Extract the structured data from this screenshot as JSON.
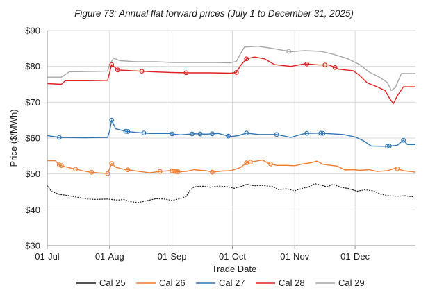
{
  "chart_data": {
    "type": "line",
    "title": "Figure 73: Annual flat forward prices (July 1 to December 31, 2025)",
    "xlabel": "Trade Date",
    "ylabel": "Price ($/MWh)",
    "ylim": [
      30,
      90
    ],
    "y_ticks": [
      30,
      40,
      50,
      60,
      70,
      80,
      90
    ],
    "y_tick_labels": [
      "$30",
      "$40",
      "$50",
      "$60",
      "$70",
      "$80",
      "$90"
    ],
    "x_range": [
      "2025-07-01",
      "2025-12-31"
    ],
    "x_ticks": [
      "2025-07-01",
      "2025-08-01",
      "2025-09-01",
      "2025-10-01",
      "2025-11-01",
      "2025-12-01"
    ],
    "x_tick_labels": [
      "01-Jul",
      "01-Aug",
      "01-Sep",
      "01-Oct",
      "01-Nov",
      "01-Dec"
    ],
    "grid": "horizontal and vertical",
    "legend_position": "bottom",
    "series": [
      {
        "name": "Cal 25",
        "color": "#1a1a1a",
        "style": "dotted",
        "points": [
          [
            "2025-07-01",
            46.8
          ],
          [
            "2025-07-03",
            45.2
          ],
          [
            "2025-07-07",
            44.3
          ],
          [
            "2025-07-11",
            44.0
          ],
          [
            "2025-07-16",
            43.5
          ],
          [
            "2025-07-21",
            43.0
          ],
          [
            "2025-07-25",
            42.9
          ],
          [
            "2025-07-31",
            43.0
          ],
          [
            "2025-08-05",
            42.7
          ],
          [
            "2025-08-08",
            42.9
          ],
          [
            "2025-08-11",
            42.3
          ],
          [
            "2025-08-15",
            42.0
          ],
          [
            "2025-08-20",
            42.6
          ],
          [
            "2025-08-24",
            43.1
          ],
          [
            "2025-08-28",
            43.0
          ],
          [
            "2025-09-01",
            42.6
          ],
          [
            "2025-09-05",
            43.1
          ],
          [
            "2025-09-08",
            43.7
          ],
          [
            "2025-09-10",
            45.5
          ],
          [
            "2025-09-12",
            46.4
          ],
          [
            "2025-09-16",
            46.6
          ],
          [
            "2025-09-20",
            46.3
          ],
          [
            "2025-09-24",
            46.6
          ],
          [
            "2025-09-28",
            46.5
          ],
          [
            "2025-10-02",
            46.0
          ],
          [
            "2025-10-06",
            46.6
          ],
          [
            "2025-10-08",
            47.1
          ],
          [
            "2025-10-12",
            46.7
          ],
          [
            "2025-10-16",
            46.8
          ],
          [
            "2025-10-21",
            46.5
          ],
          [
            "2025-10-24",
            45.6
          ],
          [
            "2025-10-28",
            45.9
          ],
          [
            "2025-11-01",
            45.3
          ],
          [
            "2025-11-04",
            45.9
          ],
          [
            "2025-11-08",
            46.4
          ],
          [
            "2025-11-11",
            47.3
          ],
          [
            "2025-11-14",
            46.9
          ],
          [
            "2025-11-17",
            46.4
          ],
          [
            "2025-11-20",
            47.1
          ],
          [
            "2025-11-24",
            46.3
          ],
          [
            "2025-11-28",
            45.9
          ],
          [
            "2025-12-02",
            45.2
          ],
          [
            "2025-12-06",
            45.6
          ],
          [
            "2025-12-10",
            45.3
          ],
          [
            "2025-12-14",
            44.3
          ],
          [
            "2025-12-18",
            43.9
          ],
          [
            "2025-12-22",
            43.8
          ],
          [
            "2025-12-26",
            43.9
          ],
          [
            "2025-12-30",
            43.6
          ]
        ]
      },
      {
        "name": "Cal 26",
        "color": "#ed7d31",
        "style": "solid",
        "points": [
          [
            "2025-07-01",
            53.7
          ],
          [
            "2025-07-05",
            53.7
          ],
          [
            "2025-07-07",
            52.5
          ],
          [
            "2025-07-10",
            52.0
          ],
          [
            "2025-07-13",
            51.6
          ],
          [
            "2025-07-17",
            51.1
          ],
          [
            "2025-07-21",
            50.6
          ],
          [
            "2025-07-26",
            50.3
          ],
          [
            "2025-07-31",
            50.1
          ],
          [
            "2025-08-02",
            52.9
          ],
          [
            "2025-08-04",
            51.9
          ],
          [
            "2025-08-08",
            51.3
          ],
          [
            "2025-08-12",
            51.0
          ],
          [
            "2025-08-17",
            50.6
          ],
          [
            "2025-08-21",
            50.3
          ],
          [
            "2025-08-26",
            50.7
          ],
          [
            "2025-08-31",
            50.9
          ],
          [
            "2025-09-04",
            50.6
          ],
          [
            "2025-09-08",
            50.7
          ],
          [
            "2025-09-12",
            51.2
          ],
          [
            "2025-09-15",
            51.0
          ],
          [
            "2025-09-18",
            50.9
          ],
          [
            "2025-09-21",
            50.5
          ],
          [
            "2025-09-26",
            50.8
          ],
          [
            "2025-09-30",
            50.9
          ],
          [
            "2025-10-02",
            51.2
          ],
          [
            "2025-10-05",
            51.8
          ],
          [
            "2025-10-08",
            53.1
          ],
          [
            "2025-10-12",
            53.5
          ],
          [
            "2025-10-16",
            53.9
          ],
          [
            "2025-10-19",
            52.9
          ],
          [
            "2025-10-23",
            52.4
          ],
          [
            "2025-10-28",
            52.4
          ],
          [
            "2025-11-01",
            52.3
          ],
          [
            "2025-11-05",
            52.8
          ],
          [
            "2025-11-09",
            53.1
          ],
          [
            "2025-11-12",
            53.6
          ],
          [
            "2025-11-15",
            52.7
          ],
          [
            "2025-11-19",
            52.4
          ],
          [
            "2025-11-22",
            52.2
          ],
          [
            "2025-11-26",
            51.1
          ],
          [
            "2025-11-30",
            51.2
          ],
          [
            "2025-12-03",
            51.0
          ],
          [
            "2025-12-08",
            51.2
          ],
          [
            "2025-12-12",
            50.7
          ],
          [
            "2025-12-17",
            50.9
          ],
          [
            "2025-12-21",
            51.6
          ],
          [
            "2025-12-25",
            50.9
          ],
          [
            "2025-12-31",
            50.5
          ]
        ]
      },
      {
        "name": "Cal 27",
        "color": "#2e75b6",
        "style": "solid",
        "points": [
          [
            "2025-07-01",
            60.7
          ],
          [
            "2025-07-07",
            60.2
          ],
          [
            "2025-07-20",
            60.1
          ],
          [
            "2025-07-31",
            60.2
          ],
          [
            "2025-08-01",
            62.0
          ],
          [
            "2025-08-02",
            65.0
          ],
          [
            "2025-08-04",
            62.6
          ],
          [
            "2025-08-09",
            61.9
          ],
          [
            "2025-08-14",
            61.6
          ],
          [
            "2025-08-21",
            61.3
          ],
          [
            "2025-08-30",
            61.3
          ],
          [
            "2025-09-05",
            60.9
          ],
          [
            "2025-09-12",
            61.2
          ],
          [
            "2025-09-18",
            61.1
          ],
          [
            "2025-09-24",
            61.3
          ],
          [
            "2025-09-30",
            60.4
          ],
          [
            "2025-10-04",
            60.7
          ],
          [
            "2025-10-08",
            61.4
          ],
          [
            "2025-10-14",
            61.0
          ],
          [
            "2025-10-23",
            61.0
          ],
          [
            "2025-10-30",
            60.2
          ],
          [
            "2025-11-06",
            61.3
          ],
          [
            "2025-11-13",
            61.4
          ],
          [
            "2025-11-19",
            61.2
          ],
          [
            "2025-11-25",
            61.0
          ],
          [
            "2025-12-01",
            60.3
          ],
          [
            "2025-12-05",
            59.3
          ],
          [
            "2025-12-09",
            57.8
          ],
          [
            "2025-12-17",
            57.7
          ],
          [
            "2025-12-22",
            58.0
          ],
          [
            "2025-12-25",
            59.4
          ],
          [
            "2025-12-27",
            58.2
          ],
          [
            "2025-12-31",
            58.2
          ]
        ]
      },
      {
        "name": "Cal 28",
        "color": "#e02020",
        "style": "solid",
        "points": [
          [
            "2025-07-01",
            75.2
          ],
          [
            "2025-07-08",
            75.0
          ],
          [
            "2025-07-10",
            76.0
          ],
          [
            "2025-07-22",
            76.0
          ],
          [
            "2025-07-31",
            76.1
          ],
          [
            "2025-08-01",
            78.3
          ],
          [
            "2025-08-02",
            80.5
          ],
          [
            "2025-08-05",
            79.0
          ],
          [
            "2025-08-12",
            78.8
          ],
          [
            "2025-08-22",
            78.5
          ],
          [
            "2025-09-01",
            78.3
          ],
          [
            "2025-09-10",
            78.2
          ],
          [
            "2025-09-20",
            78.2
          ],
          [
            "2025-09-30",
            78.1
          ],
          [
            "2025-10-03",
            78.3
          ],
          [
            "2025-10-05",
            80.2
          ],
          [
            "2025-10-08",
            82.1
          ],
          [
            "2025-10-12",
            82.6
          ],
          [
            "2025-10-17",
            82.1
          ],
          [
            "2025-10-22",
            80.5
          ],
          [
            "2025-10-30",
            80.0
          ],
          [
            "2025-11-06",
            80.7
          ],
          [
            "2025-11-13",
            80.4
          ],
          [
            "2025-11-18",
            80.4
          ],
          [
            "2025-11-23",
            79.2
          ],
          [
            "2025-11-30",
            78.8
          ],
          [
            "2025-12-03",
            77.6
          ],
          [
            "2025-12-07",
            75.4
          ],
          [
            "2025-12-12",
            74.3
          ],
          [
            "2025-12-16",
            73.2
          ],
          [
            "2025-12-18",
            71.2
          ],
          [
            "2025-12-20",
            69.6
          ],
          [
            "2025-12-22",
            71.8
          ],
          [
            "2025-12-25",
            74.3
          ],
          [
            "2025-12-31",
            74.3
          ]
        ]
      },
      {
        "name": "Cal 29",
        "color": "#a6a6a6",
        "style": "solid",
        "points": [
          [
            "2025-07-01",
            77.0
          ],
          [
            "2025-07-08",
            77.0
          ],
          [
            "2025-07-12",
            78.5
          ],
          [
            "2025-07-25",
            78.6
          ],
          [
            "2025-07-31",
            78.7
          ],
          [
            "2025-08-01",
            80.6
          ],
          [
            "2025-08-03",
            82.3
          ],
          [
            "2025-08-06",
            81.6
          ],
          [
            "2025-08-14",
            81.3
          ],
          [
            "2025-08-24",
            81.3
          ],
          [
            "2025-09-01",
            81.1
          ],
          [
            "2025-09-12",
            81.1
          ],
          [
            "2025-09-22",
            81.1
          ],
          [
            "2025-09-30",
            81.0
          ],
          [
            "2025-10-03",
            81.4
          ],
          [
            "2025-10-05",
            83.5
          ],
          [
            "2025-10-07",
            85.4
          ],
          [
            "2025-10-14",
            85.6
          ],
          [
            "2025-10-22",
            84.9
          ],
          [
            "2025-10-30",
            84.1
          ],
          [
            "2025-11-06",
            84.4
          ],
          [
            "2025-11-14",
            84.2
          ],
          [
            "2025-11-20",
            83.4
          ],
          [
            "2025-11-27",
            82.2
          ],
          [
            "2025-12-03",
            80.6
          ],
          [
            "2025-12-08",
            78.4
          ],
          [
            "2025-12-13",
            77.0
          ],
          [
            "2025-12-17",
            75.5
          ],
          [
            "2025-12-19",
            73.3
          ],
          [
            "2025-12-21",
            74.1
          ],
          [
            "2025-12-24",
            78.0
          ],
          [
            "2025-12-31",
            78.0
          ]
        ]
      }
    ],
    "markers": [
      {
        "series": "Cal 26",
        "dates": [
          "2025-07-07",
          "2025-07-08",
          "2025-07-15",
          "2025-07-23",
          "2025-07-31",
          "2025-08-02",
          "2025-08-10",
          "2025-08-26",
          "2025-09-01",
          "2025-09-02",
          "2025-09-03",
          "2025-09-04",
          "2025-09-21",
          "2025-10-08",
          "2025-10-10",
          "2025-10-20",
          "2025-12-22"
        ]
      },
      {
        "series": "Cal 27",
        "dates": [
          "2025-07-07",
          "2025-08-02",
          "2025-08-09",
          "2025-08-10",
          "2025-08-18",
          "2025-09-01",
          "2025-09-11",
          "2025-09-15",
          "2025-09-21",
          "2025-09-29",
          "2025-10-08",
          "2025-10-23",
          "2025-11-07",
          "2025-11-14",
          "2025-11-15",
          "2025-12-17",
          "2025-12-18",
          "2025-12-25"
        ]
      },
      {
        "series": "Cal 28",
        "dates": [
          "2025-08-02",
          "2025-08-05",
          "2025-08-17",
          "2025-09-08",
          "2025-10-03",
          "2025-10-08",
          "2025-11-07",
          "2025-11-16",
          "2025-11-21"
        ]
      },
      {
        "series": "Cal 29",
        "dates": [
          "2025-10-29"
        ]
      }
    ]
  }
}
